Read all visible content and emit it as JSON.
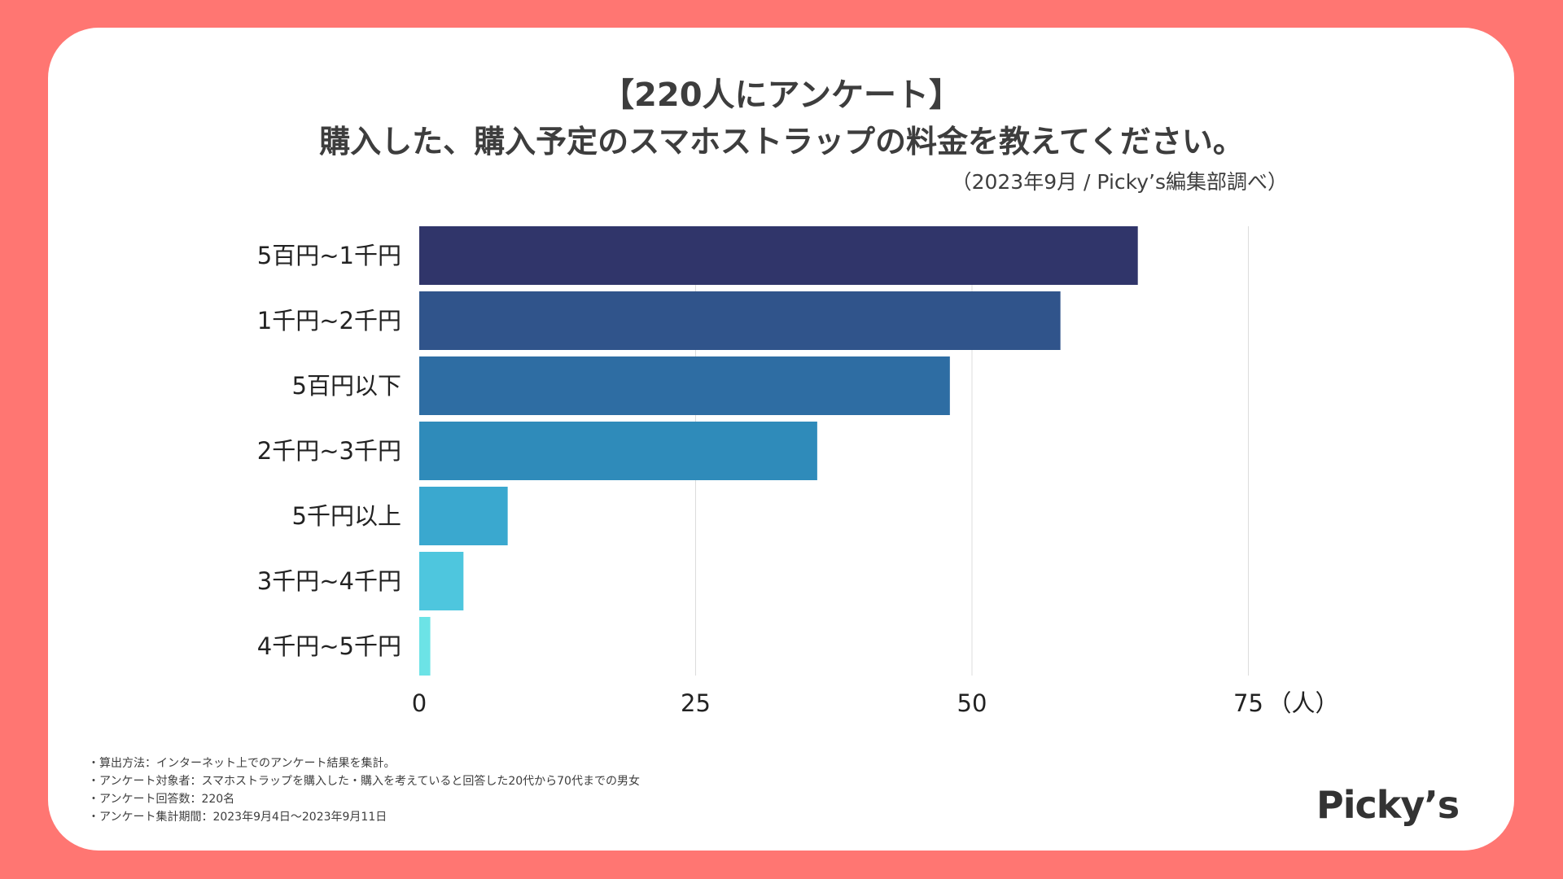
{
  "header": {
    "title_line1": "【220人にアンケート】",
    "title_line2": "購入した、購入予定のスマホストラップの料金を教えてください。",
    "source": "（2023年9月 / Picky’s編集部調べ）"
  },
  "chart_data": {
    "type": "bar",
    "orientation": "horizontal",
    "categories": [
      "5百円~1千円",
      "1千円~2千円",
      "5百円以下",
      "2千円~3千円",
      "5千円以上",
      "3千円~4千円",
      "4千円~5千円"
    ],
    "values": [
      65,
      58,
      48,
      36,
      8,
      4,
      1
    ],
    "colors": [
      "#30356a",
      "#30548b",
      "#2e6da3",
      "#2f8bba",
      "#3aa8cf",
      "#4ec6de",
      "#6ce3e6"
    ],
    "xlim": [
      0,
      75
    ],
    "xticks": [
      "0",
      "25",
      "50",
      "75"
    ],
    "xunit": "（人）",
    "grid": true
  },
  "notes": [
    "・算出方法：インターネット上でのアンケート結果を集計。",
    "・アンケート対象者：スマホストラップを購入した・購入を考えていると回答した20代から70代までの男女",
    "・アンケート回答数：220名",
    "・アンケート集計期間：2023年9月4日〜2023年9月11日"
  ],
  "logo": "Picky’s"
}
